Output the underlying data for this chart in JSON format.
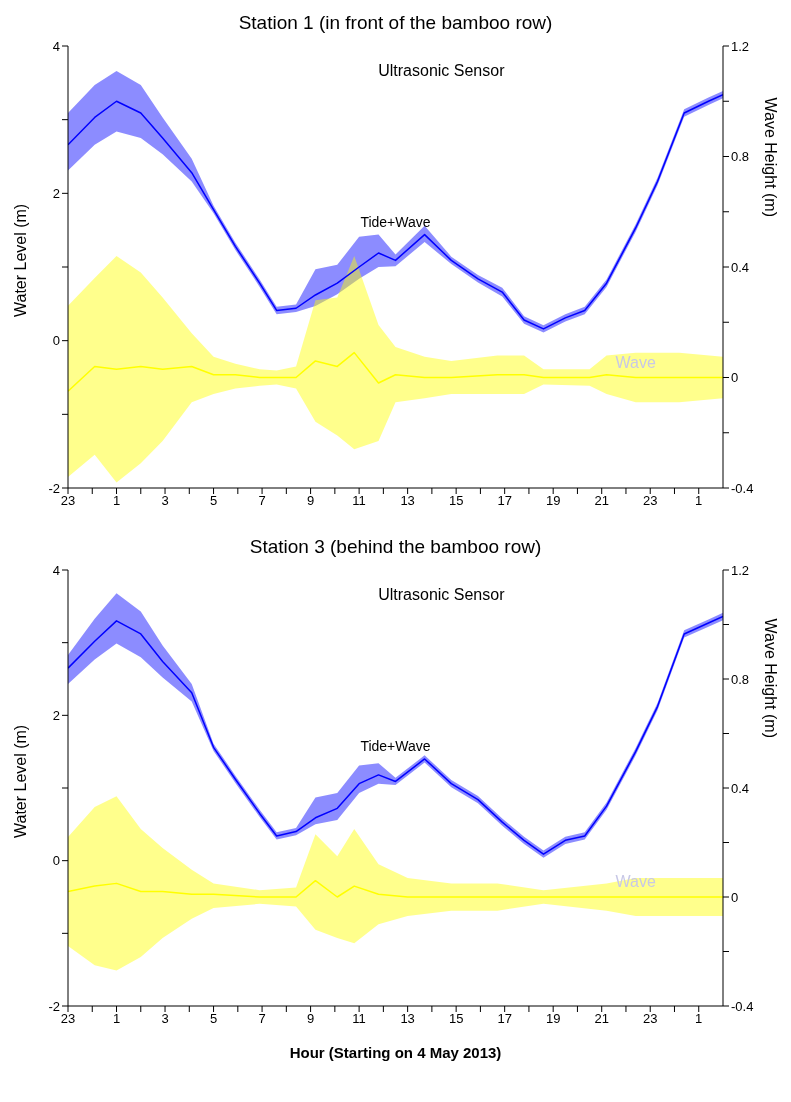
{
  "chart_data": [
    {
      "type": "line",
      "title": "Station 1 (in front of the bamboo row)",
      "ylabel": "Water Level (m)",
      "y2label": "Wave Height (m)",
      "annotations": [
        "Ultrasonic Sensor"
      ],
      "xlim": [
        "2013-05-03T23:00",
        "2013-05-05T02:00"
      ],
      "xticks": [
        {
          "value": "2013-05-03T23:00",
          "label": "23"
        },
        {
          "value": "2013-05-04T00:00",
          "label": null
        },
        {
          "value": "2013-05-04T01:00",
          "label": "1"
        },
        {
          "value": "2013-05-04T02:00",
          "label": null
        },
        {
          "value": "2013-05-04T03:00",
          "label": "3"
        },
        {
          "value": "2013-05-04T04:00",
          "label": null
        },
        {
          "value": "2013-05-04T05:00",
          "label": "5"
        },
        {
          "value": "2013-05-04T06:00",
          "label": null
        },
        {
          "value": "2013-05-04T07:00",
          "label": "7"
        },
        {
          "value": "2013-05-04T08:00",
          "label": null
        },
        {
          "value": "2013-05-04T09:00",
          "label": "9"
        },
        {
          "value": "2013-05-04T10:00",
          "label": null
        },
        {
          "value": "2013-05-04T11:00",
          "label": "11"
        },
        {
          "value": "2013-05-04T12:00",
          "label": null
        },
        {
          "value": "2013-05-04T13:00",
          "label": "13"
        },
        {
          "value": "2013-05-04T14:00",
          "label": null
        },
        {
          "value": "2013-05-04T15:00",
          "label": "15"
        },
        {
          "value": "2013-05-04T16:00",
          "label": null
        },
        {
          "value": "2013-05-04T17:00",
          "label": "17"
        },
        {
          "value": "2013-05-04T18:00",
          "label": null
        },
        {
          "value": "2013-05-04T19:00",
          "label": "19"
        },
        {
          "value": "2013-05-04T20:00",
          "label": null
        },
        {
          "value": "2013-05-04T21:00",
          "label": "21"
        },
        {
          "value": "2013-05-04T22:00",
          "label": null
        },
        {
          "value": "2013-05-04T23:00",
          "label": "23"
        },
        {
          "value": "2013-05-05T00:00",
          "label": null
        },
        {
          "value": "2013-05-05T01:00",
          "label": "1"
        }
      ],
      "ylim": [
        -2,
        4
      ],
      "yticks": [
        -2,
        {
          "value": -1,
          "label": null
        },
        0,
        {
          "value": 1,
          "label": null
        },
        2,
        {
          "value": 3,
          "label": null
        },
        4
      ],
      "y2lim": [
        -0.4,
        1.2
      ],
      "y2ticks": [
        -0.4,
        {
          "value": -0.2,
          "label": null
        },
        0,
        {
          "value": 0.2,
          "label": null
        },
        0.4,
        {
          "value": 0.6,
          "label": null
        },
        0.8,
        {
          "value": 1.0,
          "label": null
        },
        1.2
      ],
      "marker": "none",
      "series": [
        {
          "name": "Tide+Wave",
          "color": "#0000ff",
          "x": [
            "2013-05-03T23:00",
            "2013-05-04T00:06",
            "2013-05-04T01:00",
            "2013-05-04T02:00",
            "2013-05-04T02:54",
            "2013-05-04T04:06",
            "2013-05-04T05:00",
            "2013-05-04T05:54",
            "2013-05-04T06:54",
            "2013-05-04T07:36",
            "2013-05-04T08:24",
            "2013-05-04T09:12",
            "2013-05-04T10:06",
            "2013-05-04T11:00",
            "2013-05-04T11:48",
            "2013-05-04T12:30",
            "2013-05-04T13:42",
            "2013-05-04T14:48",
            "2013-05-04T15:54",
            "2013-05-04T16:54",
            "2013-05-04T17:48",
            "2013-05-04T18:36",
            "2013-05-04T19:30",
            "2013-05-04T20:18",
            "2013-05-04T21:12",
            "2013-05-04T22:24",
            "2013-05-04T23:18",
            "2013-05-05T00:24",
            "2013-05-05T01:24",
            "2013-05-05T02:00"
          ],
          "values": [
            2.66,
            3.03,
            3.25,
            3.09,
            2.75,
            2.28,
            1.78,
            1.28,
            0.78,
            0.41,
            0.44,
            0.62,
            0.78,
            1.0,
            1.19,
            1.09,
            1.44,
            1.09,
            0.84,
            0.66,
            0.28,
            0.16,
            0.31,
            0.41,
            0.78,
            1.53,
            2.16,
            3.09,
            3.25,
            3.34
          ],
          "upper": [
            3.09,
            3.47,
            3.66,
            3.47,
            3.03,
            2.47,
            1.83,
            1.33,
            0.83,
            0.46,
            0.49,
            0.97,
            1.03,
            1.41,
            1.44,
            1.17,
            1.56,
            1.14,
            0.89,
            0.72,
            0.33,
            0.21,
            0.36,
            0.46,
            0.83,
            1.58,
            2.21,
            3.14,
            3.3,
            3.39
          ],
          "lower": [
            2.31,
            2.66,
            2.84,
            2.75,
            2.53,
            2.16,
            1.73,
            1.23,
            0.73,
            0.36,
            0.39,
            0.47,
            0.63,
            0.84,
            1.0,
            1.01,
            1.34,
            1.04,
            0.79,
            0.6,
            0.23,
            0.11,
            0.26,
            0.36,
            0.73,
            1.48,
            2.11,
            3.04,
            3.2,
            3.29
          ]
        },
        {
          "name": "Wave",
          "axis": "y2",
          "color": "#ffff00",
          "x": [
            "2013-05-03T23:00",
            "2013-05-04T00:06",
            "2013-05-04T01:00",
            "2013-05-04T02:00",
            "2013-05-04T02:54",
            "2013-05-04T04:06",
            "2013-05-04T05:00",
            "2013-05-04T05:54",
            "2013-05-04T06:54",
            "2013-05-04T07:36",
            "2013-05-04T08:24",
            "2013-05-04T09:12",
            "2013-05-04T10:06",
            "2013-05-04T10:48",
            "2013-05-04T11:48",
            "2013-05-04T12:30",
            "2013-05-04T13:42",
            "2013-05-04T14:48",
            "2013-05-04T16:42",
            "2013-05-04T17:48",
            "2013-05-04T18:36",
            "2013-05-04T20:30",
            "2013-05-04T21:12",
            "2013-05-04T22:24",
            "2013-05-05T00:12",
            "2013-05-05T02:00"
          ],
          "values": [
            -0.05,
            0.04,
            0.03,
            0.04,
            0.03,
            0.04,
            0.01,
            0.01,
            0,
            0,
            0,
            0.06,
            0.04,
            0.09,
            -0.02,
            0.01,
            0,
            0,
            0.01,
            0.01,
            0,
            0,
            0.01,
            0,
            0,
            0
          ],
          "upper": [
            0.26,
            0.36,
            0.44,
            0.38,
            0.29,
            0.16,
            0.075,
            0.05,
            0.03,
            0.025,
            0.04,
            0.28,
            0.29,
            0.44,
            0.19,
            0.11,
            0.075,
            0.06,
            0.08,
            0.08,
            0.03,
            0.03,
            0.08,
            0.09,
            0.09,
            0.075
          ],
          "lower": [
            -0.36,
            -0.28,
            -0.38,
            -0.31,
            -0.23,
            -0.09,
            -0.06,
            -0.04,
            -0.03,
            -0.025,
            -0.04,
            -0.16,
            -0.21,
            -0.26,
            -0.23,
            -0.09,
            -0.075,
            -0.06,
            -0.06,
            -0.06,
            -0.025,
            -0.03,
            -0.06,
            -0.09,
            -0.09,
            -0.075
          ]
        }
      ]
    },
    {
      "type": "line",
      "title": "Station 3 (behind the bamboo row)",
      "xlabel": "Hour (Starting on 4 May 2013)",
      "ylabel": "Water Level (m)",
      "y2label": "Wave Height (m)",
      "annotations": [
        "Ultrasonic Sensor"
      ],
      "xlim": [
        "2013-05-03T23:00",
        "2013-05-05T02:00"
      ],
      "xticks": [
        {
          "value": "2013-05-03T23:00",
          "label": "23"
        },
        {
          "value": "2013-05-04T00:00",
          "label": null
        },
        {
          "value": "2013-05-04T01:00",
          "label": "1"
        },
        {
          "value": "2013-05-04T02:00",
          "label": null
        },
        {
          "value": "2013-05-04T03:00",
          "label": "3"
        },
        {
          "value": "2013-05-04T04:00",
          "label": null
        },
        {
          "value": "2013-05-04T05:00",
          "label": "5"
        },
        {
          "value": "2013-05-04T06:00",
          "label": null
        },
        {
          "value": "2013-05-04T07:00",
          "label": "7"
        },
        {
          "value": "2013-05-04T08:00",
          "label": null
        },
        {
          "value": "2013-05-04T09:00",
          "label": "9"
        },
        {
          "value": "2013-05-04T10:00",
          "label": null
        },
        {
          "value": "2013-05-04T11:00",
          "label": "11"
        },
        {
          "value": "2013-05-04T12:00",
          "label": null
        },
        {
          "value": "2013-05-04T13:00",
          "label": "13"
        },
        {
          "value": "2013-05-04T14:00",
          "label": null
        },
        {
          "value": "2013-05-04T15:00",
          "label": "15"
        },
        {
          "value": "2013-05-04T16:00",
          "label": null
        },
        {
          "value": "2013-05-04T17:00",
          "label": "17"
        },
        {
          "value": "2013-05-04T18:00",
          "label": null
        },
        {
          "value": "2013-05-04T19:00",
          "label": "19"
        },
        {
          "value": "2013-05-04T20:00",
          "label": null
        },
        {
          "value": "2013-05-04T21:00",
          "label": "21"
        },
        {
          "value": "2013-05-04T22:00",
          "label": null
        },
        {
          "value": "2013-05-04T23:00",
          "label": "23"
        },
        {
          "value": "2013-05-05T00:00",
          "label": null
        },
        {
          "value": "2013-05-05T01:00",
          "label": "1"
        }
      ],
      "ylim": [
        -2,
        4
      ],
      "yticks": [
        -2,
        {
          "value": -1,
          "label": null
        },
        0,
        {
          "value": 1,
          "label": null
        },
        2,
        {
          "value": 3,
          "label": null
        },
        4
      ],
      "y2lim": [
        -0.4,
        1.2
      ],
      "y2ticks": [
        -0.4,
        {
          "value": -0.2,
          "label": null
        },
        0,
        {
          "value": 0.2,
          "label": null
        },
        0.4,
        {
          "value": 0.6,
          "label": null
        },
        0.8,
        {
          "value": 1.0,
          "label": null
        },
        1.2
      ],
      "marker": "none",
      "series": [
        {
          "name": "Tide+Wave",
          "color": "#0000ff",
          "x": [
            "2013-05-03T23:00",
            "2013-05-04T00:06",
            "2013-05-04T01:00",
            "2013-05-04T02:00",
            "2013-05-04T02:54",
            "2013-05-04T04:06",
            "2013-05-04T05:00",
            "2013-05-04T05:54",
            "2013-05-04T06:54",
            "2013-05-04T07:36",
            "2013-05-04T08:24",
            "2013-05-04T09:12",
            "2013-05-04T10:06",
            "2013-05-04T11:00",
            "2013-05-04T11:48",
            "2013-05-04T12:30",
            "2013-05-04T13:42",
            "2013-05-04T14:48",
            "2013-05-04T15:54",
            "2013-05-04T16:54",
            "2013-05-04T17:48",
            "2013-05-04T18:36",
            "2013-05-04T19:30",
            "2013-05-04T20:18",
            "2013-05-04T21:12",
            "2013-05-04T22:24",
            "2013-05-04T23:18",
            "2013-05-05T00:24",
            "2013-05-05T01:24",
            "2013-05-05T02:00"
          ],
          "values": [
            2.65,
            3.02,
            3.3,
            3.12,
            2.74,
            2.31,
            1.56,
            1.12,
            0.65,
            0.34,
            0.4,
            0.59,
            0.72,
            1.06,
            1.18,
            1.09,
            1.4,
            1.06,
            0.84,
            0.53,
            0.28,
            0.09,
            0.28,
            0.34,
            0.75,
            1.5,
            2.12,
            3.12,
            3.27,
            3.36
          ],
          "upper": [
            2.83,
            3.33,
            3.68,
            3.43,
            2.96,
            2.43,
            1.61,
            1.17,
            0.7,
            0.39,
            0.45,
            0.87,
            0.93,
            1.31,
            1.34,
            1.14,
            1.45,
            1.11,
            0.89,
            0.58,
            0.33,
            0.14,
            0.33,
            0.39,
            0.8,
            1.55,
            2.17,
            3.17,
            3.32,
            3.41
          ],
          "lower": [
            2.43,
            2.77,
            2.99,
            2.8,
            2.52,
            2.19,
            1.51,
            1.07,
            0.6,
            0.29,
            0.35,
            0.5,
            0.56,
            0.93,
            1.06,
            1.04,
            1.35,
            1.01,
            0.79,
            0.48,
            0.23,
            0.04,
            0.23,
            0.29,
            0.7,
            1.45,
            2.07,
            3.07,
            3.22,
            3.31
          ]
        },
        {
          "name": "Wave",
          "axis": "y2",
          "color": "#ffff00",
          "x": [
            "2013-05-03T23:00",
            "2013-05-04T00:06",
            "2013-05-04T01:00",
            "2013-05-04T02:00",
            "2013-05-04T02:54",
            "2013-05-04T04:06",
            "2013-05-04T05:00",
            "2013-05-04T06:54",
            "2013-05-04T08:24",
            "2013-05-04T09:12",
            "2013-05-04T10:06",
            "2013-05-04T10:48",
            "2013-05-04T11:48",
            "2013-05-04T13:00",
            "2013-05-04T14:48",
            "2013-05-04T16:42",
            "2013-05-04T18:36",
            "2013-05-04T21:12",
            "2013-05-04T22:24",
            "2013-05-05T00:12",
            "2013-05-05T02:00"
          ],
          "values": [
            0.02,
            0.04,
            0.05,
            0.02,
            0.02,
            0.01,
            0.01,
            0,
            0,
            0.06,
            0,
            0.04,
            0.01,
            0,
            0,
            0,
            0,
            0,
            0,
            0,
            0
          ],
          "upper": [
            0.22,
            0.33,
            0.37,
            0.25,
            0.18,
            0.1,
            0.05,
            0.025,
            0.035,
            0.23,
            0.15,
            0.25,
            0.12,
            0.07,
            0.05,
            0.05,
            0.025,
            0.05,
            0.07,
            0.07,
            0.07
          ],
          "lower": [
            -0.18,
            -0.25,
            -0.27,
            -0.22,
            -0.15,
            -0.08,
            -0.04,
            -0.025,
            -0.035,
            -0.12,
            -0.15,
            -0.17,
            -0.1,
            -0.07,
            -0.05,
            -0.05,
            -0.025,
            -0.05,
            -0.07,
            -0.07,
            -0.07
          ]
        }
      ]
    }
  ]
}
